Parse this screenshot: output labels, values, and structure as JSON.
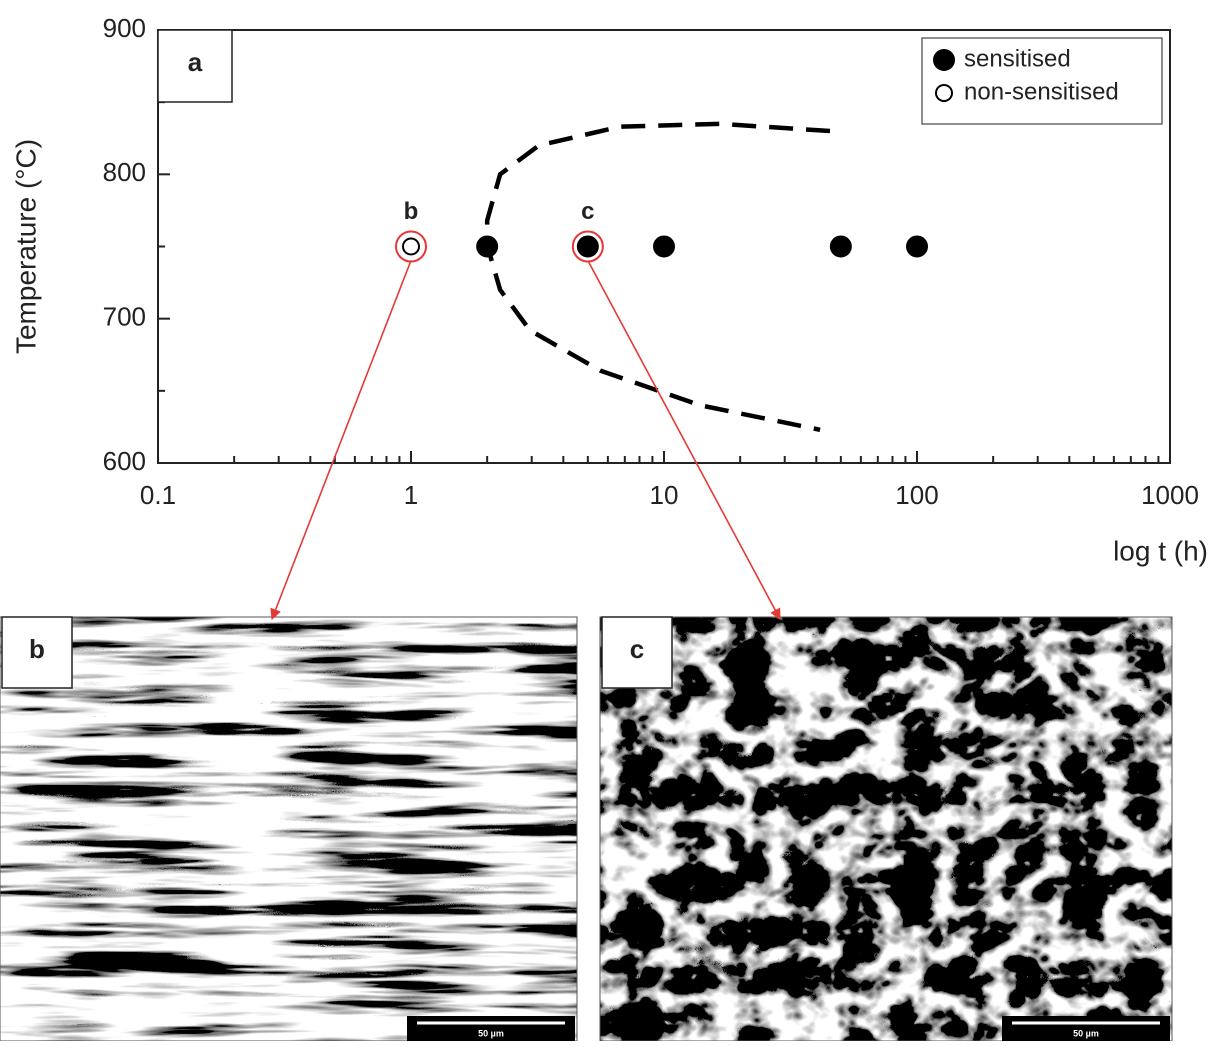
{
  "chart_data": {
    "type": "scatter",
    "panel_label": "a",
    "xlabel": "log t (h)",
    "ylabel": "Temperature (°C)",
    "xscale": "log",
    "xlim": [
      0.1,
      1000
    ],
    "ylim": [
      600,
      900
    ],
    "xticks": [
      0.1,
      1,
      10,
      100,
      1000
    ],
    "yticks": [
      600,
      700,
      800,
      900
    ],
    "legend_position": "upper right",
    "series": [
      {
        "name": "sensitised",
        "color": "#000000",
        "marker": "filled",
        "x": [
          2,
          5,
          10,
          50,
          100
        ],
        "values": [
          750,
          750,
          750,
          750,
          750
        ],
        "point_labels": [
          null,
          "c",
          null,
          null,
          null
        ]
      },
      {
        "name": "non-sensitised",
        "color": "#000000",
        "marker": "open",
        "x": [
          1
        ],
        "values": [
          750
        ],
        "point_labels": [
          "b"
        ]
      },
      {
        "color": "#000000",
        "style": "dashed",
        "x": [
          45.3,
          16.6,
          6.7,
          3.2,
          2.25,
          2.0,
          2.0,
          2.25,
          2.95,
          5.6,
          13.9,
          41.4
        ],
        "values": [
          830,
          835,
          833,
          820,
          800,
          768,
          751,
          720,
          692,
          664,
          640,
          623
        ]
      }
    ],
    "images": [
      {
        "label": "b",
        "scale_bar": "50 µm"
      },
      {
        "label": "c",
        "scale_bar": "50 µm"
      }
    ]
  }
}
